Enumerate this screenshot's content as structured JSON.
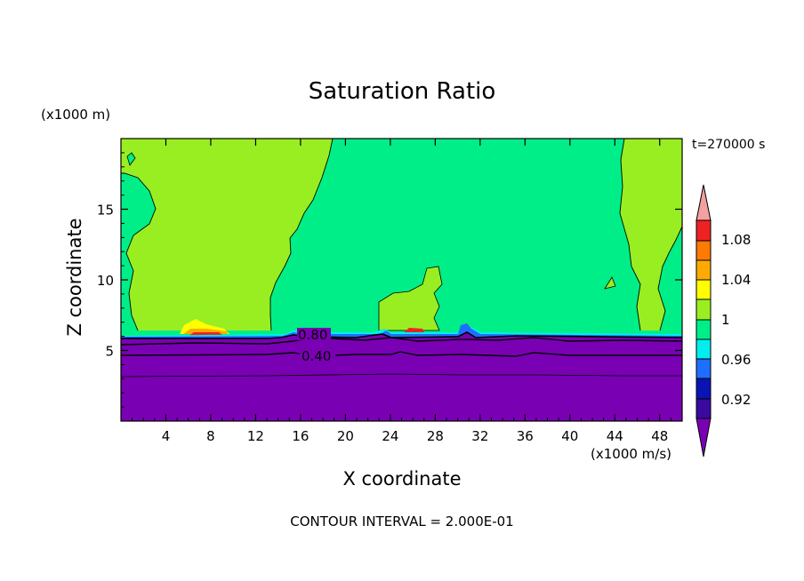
{
  "chart_data": {
    "type": "heatmap",
    "title": "Saturation Ratio",
    "xlabel": "X coordinate",
    "ylabel": "Z coordinate",
    "x_unit": "(x1000 m/s)",
    "z_unit": "(x1000 m)",
    "time_label": "t=270000 s",
    "footer": "CONTOUR INTERVAL = 2.000E-01",
    "xlim": [
      0,
      50
    ],
    "ylim": [
      0,
      20
    ],
    "x_ticks": [
      4,
      8,
      12,
      16,
      20,
      24,
      28,
      32,
      36,
      40,
      44,
      48
    ],
    "y_ticks": [
      5,
      10,
      15
    ],
    "colorbar_labels": [
      "1.08",
      "1.04",
      "1",
      "0.96",
      "0.92"
    ],
    "colorbar_colors": {
      "above_max": "#f3a0a0",
      "b_1_08": "#ee2222",
      "b_1_06": "#ff7a00",
      "b_1_04": "#ffaa00",
      "b_1_02": "#ffff00",
      "b_1_00": "#99ee22",
      "b_0_98": "#00ee88",
      "b_0_96": "#00eeee",
      "b_0_94": "#1e6fff",
      "b_0_92": "#0a14b4",
      "b_0_90": "#3a0aa0",
      "below_min": "#7a00b4"
    },
    "contour_lines": [
      {
        "label": "0.80",
        "z": 5.6
      },
      {
        "label": "0.40",
        "z": 4.6
      }
    ],
    "fields": {
      "low_layer_top_z": 6.1,
      "low_layer_value": "< 0.92",
      "supersaturated_patch_x": [
        5.5,
        9.5
      ],
      "supersaturated_patch_z": [
        6.1,
        7.0
      ]
    }
  }
}
